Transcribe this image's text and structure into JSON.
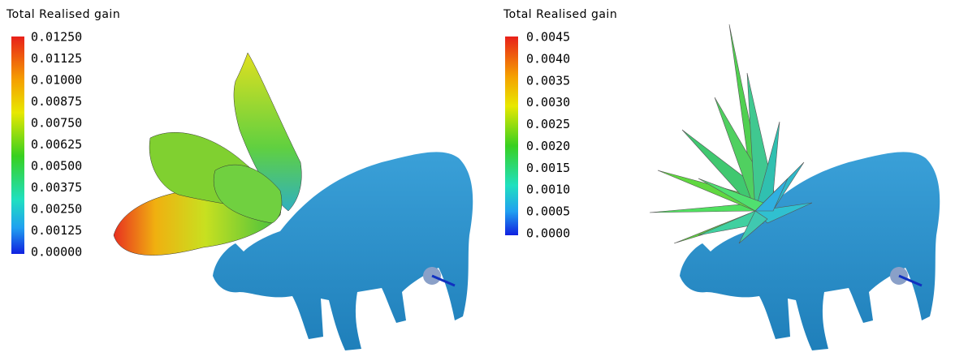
{
  "panels": [
    {
      "title": "Total Realised gain",
      "ticks": [
        "0.01250",
        "0.01125",
        "0.01000",
        "0.00875",
        "0.00750",
        "0.00625",
        "0.00500",
        "0.00375",
        "0.00250",
        "0.00125",
        "0.00000"
      ]
    },
    {
      "title": "Total Realised gain",
      "ticks": [
        "0.0045",
        "0.0040",
        "0.0035",
        "0.0030",
        "0.0025",
        "0.0020",
        "0.0015",
        "0.0010",
        "0.0005",
        "0.0000"
      ]
    }
  ]
}
